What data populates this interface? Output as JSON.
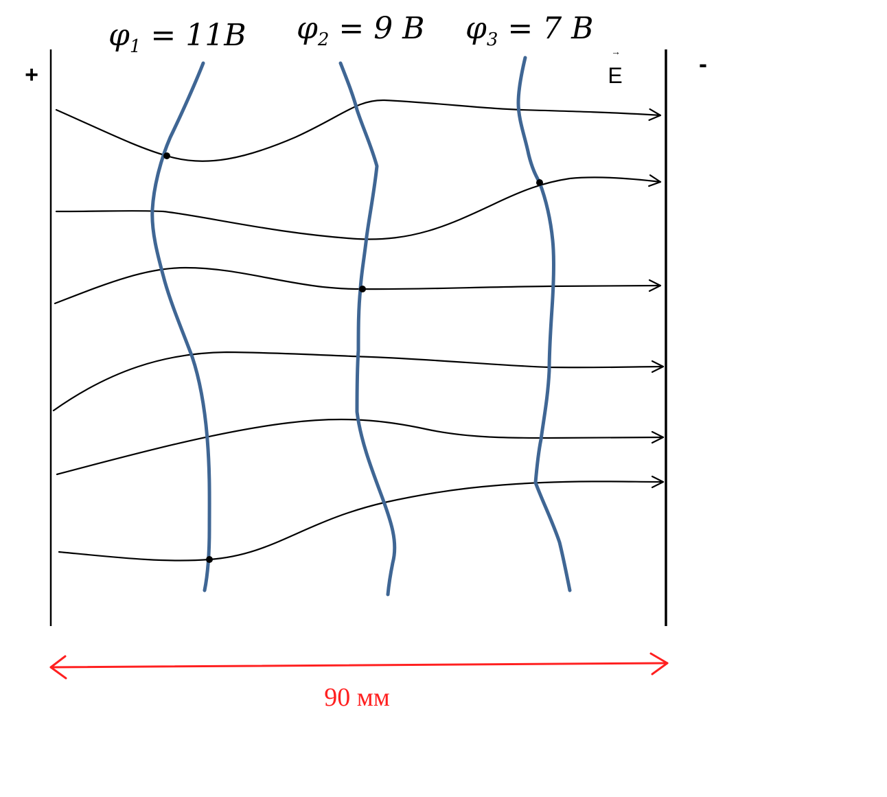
{
  "potentials": [
    {
      "symbol": "φ",
      "index": "1",
      "rest": " = 11B"
    },
    {
      "symbol": "φ",
      "index": "2",
      "rest": " = 9 B"
    },
    {
      "symbol": "φ",
      "index": "3",
      "rest": " = 7 B"
    }
  ],
  "plates": {
    "positive_label": "+",
    "negative_label": "-"
  },
  "field_label": "E",
  "distance_label": "90 мм",
  "colors": {
    "field_line": "#000000",
    "equipotential": "#3f6694",
    "dimension": "#ff2020",
    "plate": "#000000"
  }
}
